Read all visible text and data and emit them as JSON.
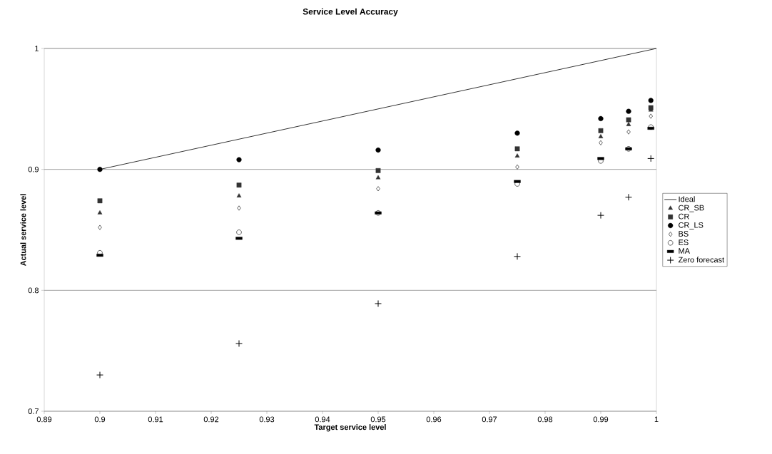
{
  "chart_data": {
    "type": "scatter",
    "title": "Service Level Accuracy",
    "xlabel": "Target service level",
    "ylabel": "Actual service level",
    "xlim": [
      0.89,
      1
    ],
    "ylim": [
      0.7,
      1
    ],
    "xticks": [
      0.89,
      0.9,
      0.91,
      0.92,
      0.93,
      0.94,
      0.95,
      0.96,
      0.97,
      0.98,
      0.99,
      1
    ],
    "yticks": [
      0.7,
      0.8,
      0.9,
      1
    ],
    "grid": "y",
    "legend": "right",
    "x": [
      0.9,
      0.925,
      0.95,
      0.975,
      0.99,
      0.995,
      0.999
    ],
    "series": [
      {
        "name": "Ideal",
        "type": "line",
        "x": [
          0.9,
          1
        ],
        "values": [
          0.9,
          1
        ],
        "color": "#000000",
        "marker": "none",
        "line_style": "solid"
      },
      {
        "name": "CR_SB",
        "color": "#333333",
        "marker": "triangle",
        "values": [
          0.864,
          0.878,
          0.893,
          0.911,
          0.927,
          0.937,
          0.949
        ]
      },
      {
        "name": "CR",
        "color": "#333333",
        "marker": "square",
        "values": [
          0.874,
          0.887,
          0.899,
          0.917,
          0.932,
          0.941,
          0.951
        ]
      },
      {
        "name": "CR_LS",
        "color": "#000000",
        "marker": "circle",
        "values": [
          0.9,
          0.908,
          0.916,
          0.93,
          0.942,
          0.948,
          0.957
        ]
      },
      {
        "name": "BS",
        "color": "#000000",
        "marker": "diamond",
        "values": [
          0.852,
          0.868,
          0.884,
          0.902,
          0.922,
          0.931,
          0.944
        ]
      },
      {
        "name": "ES",
        "color": "#000000",
        "marker": "circle",
        "values": [
          0.831,
          0.848,
          0.864,
          0.888,
          0.907,
          0.917,
          0.935
        ]
      },
      {
        "name": "MA",
        "color": "#000000",
        "values": [
          0.829,
          0.843,
          0.864,
          0.89,
          0.909,
          0.917,
          0.934
        ]
      },
      {
        "name": "Zero forecast",
        "color": "#000000",
        "marker": "cross",
        "values": [
          0.73,
          0.756,
          0.789,
          0.828,
          0.862,
          0.877,
          0.909
        ]
      }
    ]
  }
}
